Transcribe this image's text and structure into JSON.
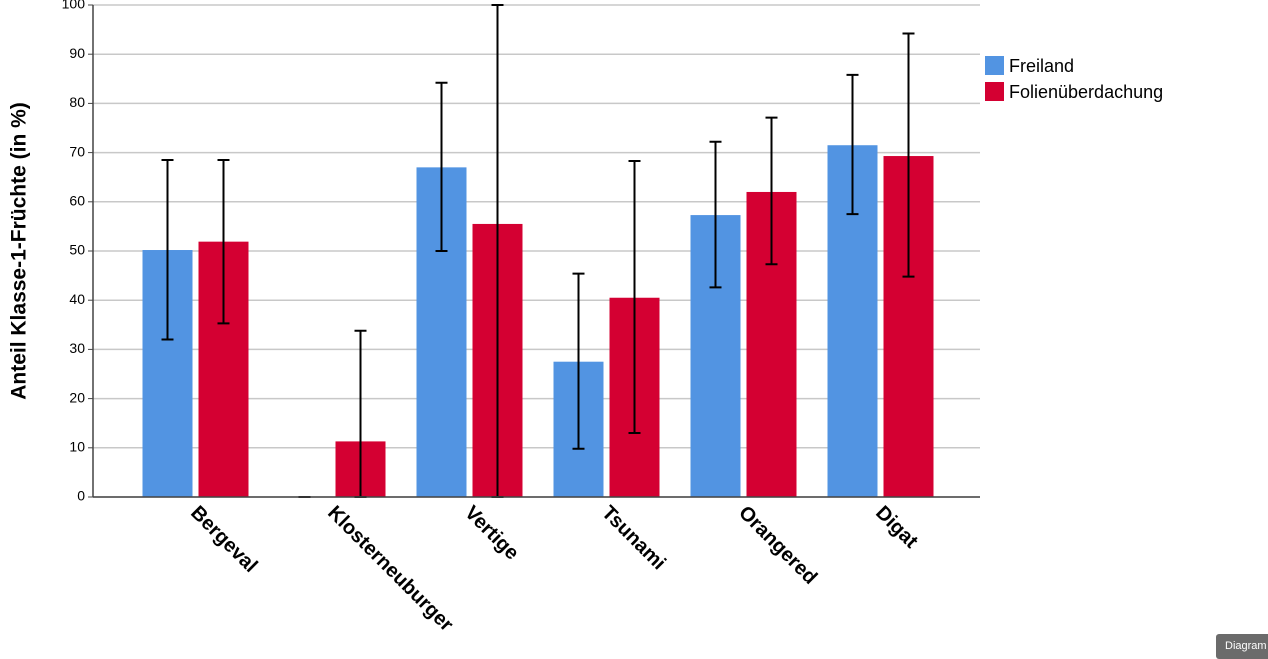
{
  "chart_data": {
    "type": "bar",
    "y_label": "Anteil Klasse-1-Früchte (in %)",
    "categories": [
      "Bergeval",
      "Klosterneuburger",
      "Vertige",
      "Tsunami",
      "Orangered",
      "Digat"
    ],
    "series": [
      {
        "name": "Freiland",
        "color": "#5294e2",
        "values": [
          50.2,
          0,
          67,
          27.5,
          57.3,
          71.5
        ],
        "lower": [
          32,
          0,
          50,
          9.8,
          42.6,
          57.5
        ],
        "upper": [
          68.5,
          0,
          84.2,
          45.4,
          72.2,
          85.8
        ]
      },
      {
        "name": "Folienüberdachung",
        "color": "#d40032",
        "values": [
          51.9,
          11.3,
          55.5,
          40.5,
          62,
          69.3
        ],
        "lower": [
          35.3,
          0,
          0,
          13,
          47.3,
          44.8
        ],
        "upper": [
          68.5,
          33.8,
          100,
          68.3,
          77.1,
          94.2
        ]
      }
    ],
    "ylim": [
      0,
      100
    ],
    "yticks": [
      0,
      10,
      20,
      30,
      40,
      50,
      60,
      70,
      80,
      90,
      100
    ],
    "grid": true,
    "legend": "right"
  },
  "button": "Diagram"
}
